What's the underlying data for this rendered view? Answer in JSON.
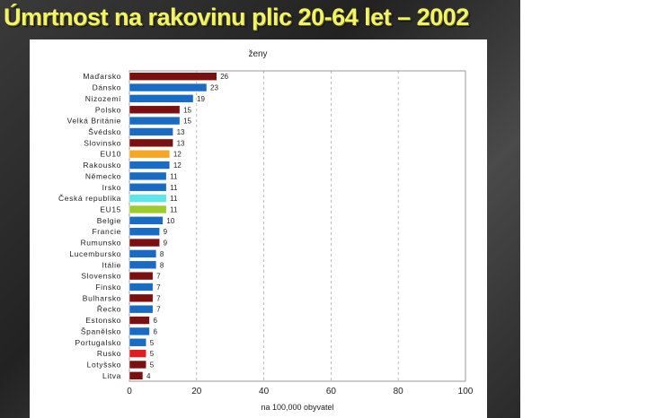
{
  "slide": {
    "title": "Úmrtnost na rakovinu plic 20-64 let – 2002"
  },
  "chart_data": {
    "type": "bar",
    "orientation": "horizontal",
    "title": "ženy",
    "xlabel": "na 100,000 obyvatel",
    "ylabel": "",
    "xlim": [
      0,
      100
    ],
    "xticks": [
      0,
      20,
      40,
      60,
      80,
      100
    ],
    "grid": "vertical dashed",
    "legend": "none",
    "categories": [
      "Maďarsko",
      "Dánsko",
      "Nizozemí",
      "Polsko",
      "Velká Británie",
      "Švédsko",
      "Slovinsko",
      "EU10",
      "Rakousko",
      "Německo",
      "Irsko",
      "Česká republika",
      "EU15",
      "Belgie",
      "Francie",
      "Rumunsko",
      "Lucembursko",
      "Itálie",
      "Slovensko",
      "Finsko",
      "Bulharsko",
      "Řecko",
      "Estonsko",
      "Španělsko",
      "Portugalsko",
      "Rusko",
      "Lotyšsko",
      "Litva"
    ],
    "values": [
      26,
      23,
      19,
      15,
      15,
      13,
      13,
      12,
      12,
      11,
      11,
      11,
      11,
      10,
      9,
      9,
      8,
      8,
      7,
      7,
      7,
      7,
      6,
      6,
      5,
      5,
      5,
      4
    ],
    "bar_colors": [
      "#7b1010",
      "#1a6bc4",
      "#1a6bc4",
      "#7b1010",
      "#1a6bc4",
      "#1a6bc4",
      "#7b1010",
      "#f5a623",
      "#1a6bc4",
      "#1a6bc4",
      "#1a6bc4",
      "#5ce6e6",
      "#9ccc2c",
      "#1a6bc4",
      "#1a6bc4",
      "#7b1010",
      "#1a6bc4",
      "#1a6bc4",
      "#7b1010",
      "#1a6bc4",
      "#7b1010",
      "#1a6bc4",
      "#7b1010",
      "#1a6bc4",
      "#1a6bc4",
      "#e02020",
      "#7b1010",
      "#7b1010"
    ],
    "colors": {
      "plot_border": "#9a9a9a",
      "grid": "#a0a0a0",
      "bar_outline": "#ffffff"
    }
  }
}
